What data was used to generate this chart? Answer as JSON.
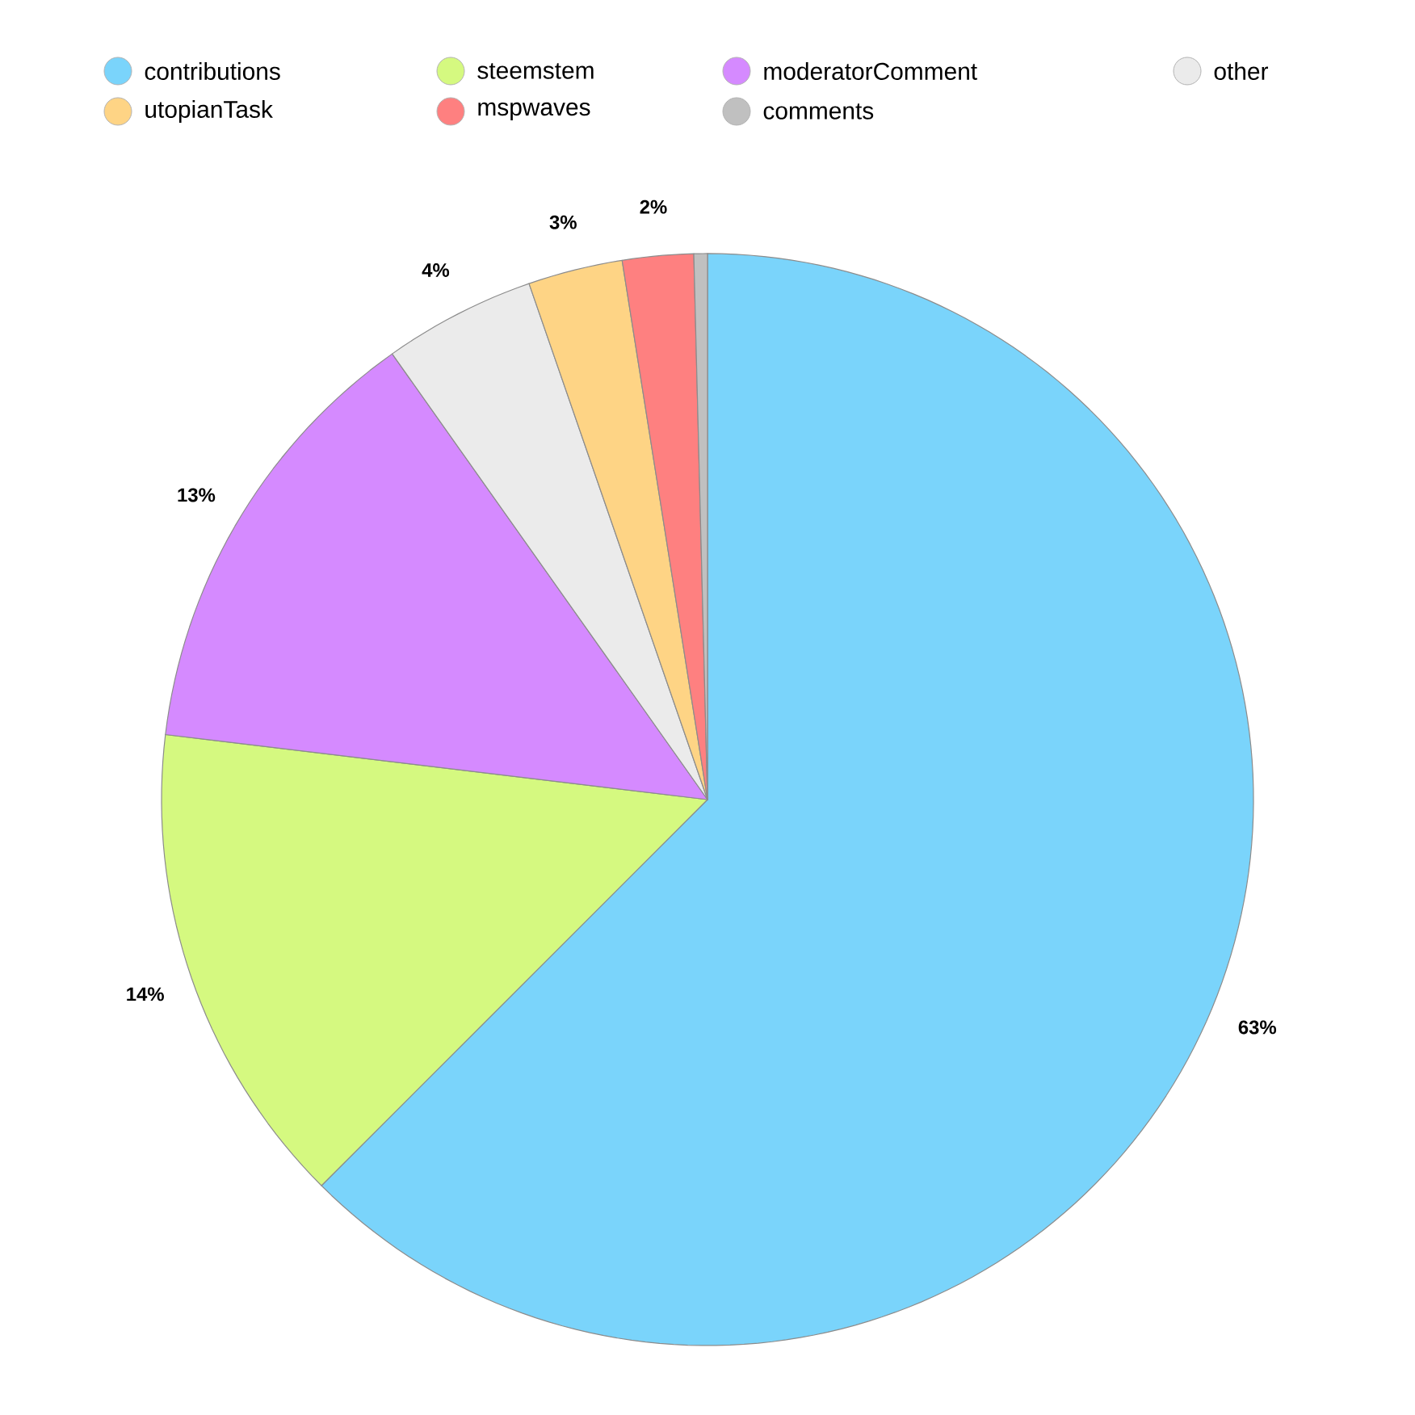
{
  "chart_data": {
    "type": "pie",
    "categories": [
      "contributions",
      "steemstem",
      "moderatorComment",
      "other",
      "utopianTask",
      "mspwaves",
      "comments"
    ],
    "values": [
      62.5,
      14.4,
      13.3,
      4.5,
      2.8,
      2.1,
      0.4
    ],
    "colors": [
      "#7ad4fb",
      "#d5f980",
      "#d58aff",
      "#ebebeb",
      "#fed485",
      "#fe8080",
      "#c0c0c0"
    ],
    "value_labels": [
      "63%",
      "14%",
      "13%",
      "4%",
      "3%",
      "2%",
      null
    ],
    "legend": "top"
  }
}
